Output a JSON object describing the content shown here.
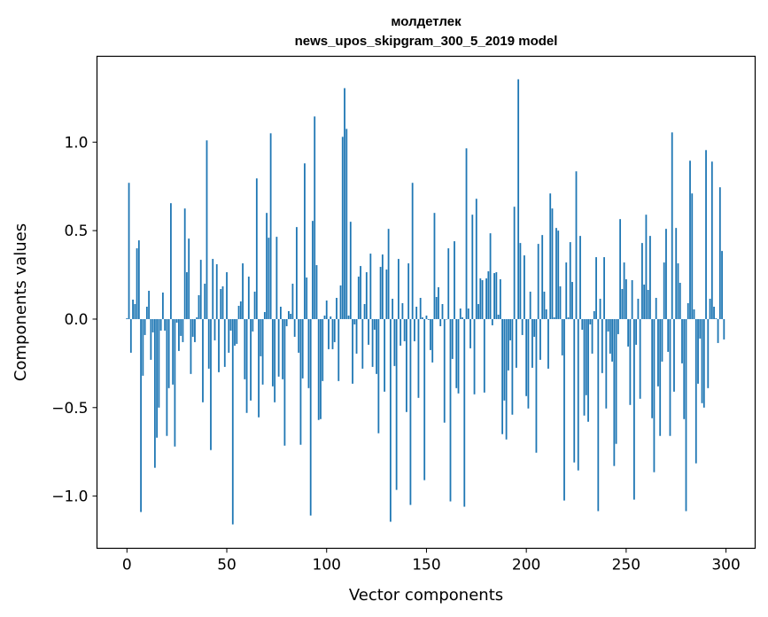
{
  "chart_data": {
    "type": "bar",
    "title_line1": "молдетлек",
    "title_line2": "news_upos_skipgram_300_5_2019 model",
    "xlabel": "Vector components",
    "ylabel": "Components values",
    "xlim": [
      -15,
      314.6
    ],
    "ylim": [
      -1.295,
      1.485
    ],
    "xticks": [
      0,
      50,
      100,
      150,
      200,
      250,
      300
    ],
    "xtick_labels": [
      "0",
      "50",
      "100",
      "150",
      "200",
      "250",
      "300"
    ],
    "yticks": [
      -1.0,
      -0.5,
      0.0,
      0.5,
      1.0
    ],
    "ytick_labels": [
      "−1.0",
      "−0.5",
      "0.0",
      "0.5",
      "1.0"
    ],
    "grid": false,
    "bar_color": "#1f77b4",
    "values": [
      0.005,
      0.77,
      -0.19,
      0.11,
      0.085,
      0.4,
      0.445,
      -1.09,
      -0.32,
      -0.09,
      0.07,
      0.16,
      -0.23,
      -0.075,
      -0.84,
      -0.67,
      -0.5,
      -0.065,
      0.15,
      -0.065,
      -0.66,
      -0.39,
      0.655,
      -0.37,
      -0.72,
      -0.02,
      -0.18,
      -0.095,
      -0.13,
      0.625,
      0.265,
      0.455,
      -0.31,
      -0.1,
      -0.13,
      0.01,
      0.135,
      0.335,
      -0.47,
      0.2,
      1.01,
      -0.28,
      -0.74,
      0.34,
      -0.12,
      0.31,
      -0.3,
      0.17,
      0.185,
      -0.27,
      0.265,
      -0.19,
      -0.065,
      -1.16,
      -0.15,
      -0.14,
      0.075,
      0.1,
      0.315,
      -0.34,
      -0.53,
      0.24,
      -0.46,
      -0.07,
      0.155,
      0.795,
      -0.555,
      -0.21,
      -0.37,
      0.04,
      0.6,
      0.46,
      1.05,
      -0.38,
      -0.47,
      0.465,
      -0.325,
      0.07,
      -0.34,
      -0.715,
      -0.04,
      0.045,
      0.03,
      0.2,
      -0.1,
      0.52,
      -0.19,
      -0.71,
      -0.335,
      0.88,
      0.235,
      -0.39,
      -1.11,
      0.555,
      1.145,
      0.305,
      -0.57,
      -0.565,
      -0.35,
      0.02,
      0.105,
      -0.17,
      0.015,
      -0.17,
      -0.13,
      0.12,
      -0.35,
      0.19,
      1.03,
      1.305,
      1.075,
      0.02,
      0.55,
      -0.365,
      -0.03,
      -0.195,
      0.24,
      0.3,
      -0.28,
      0.085,
      0.265,
      -0.145,
      0.37,
      -0.27,
      -0.06,
      -0.31,
      -0.645,
      0.295,
      0.365,
      -0.41,
      0.28,
      0.51,
      -1.145,
      0.115,
      -0.265,
      -0.965,
      0.34,
      -0.15,
      0.09,
      -0.125,
      -0.525,
      0.315,
      -1.05,
      0.77,
      -0.125,
      0.07,
      -0.445,
      0.12,
      0.01,
      -0.91,
      0.02,
      -0.005,
      -0.175,
      -0.245,
      0.6,
      0.125,
      0.18,
      -0.04,
      0.085,
      -0.585,
      0.0,
      0.4,
      -1.03,
      -0.225,
      0.44,
      -0.39,
      -0.42,
      0.06,
      0.01,
      -1.06,
      0.965,
      0.06,
      -0.165,
      0.59,
      -0.425,
      0.68,
      0.085,
      0.23,
      0.22,
      -0.415,
      0.23,
      0.27,
      0.485,
      -0.035,
      0.26,
      0.265,
      0.025,
      0.225,
      -0.65,
      -0.46,
      -0.68,
      -0.29,
      -0.12,
      -0.54,
      0.635,
      -0.275,
      1.355,
      0.43,
      -0.09,
      0.36,
      -0.435,
      -0.505,
      0.155,
      -0.275,
      -0.1,
      -0.755,
      0.425,
      -0.23,
      0.475,
      0.155,
      0.055,
      -0.28,
      0.71,
      0.625,
      0.01,
      0.515,
      0.5,
      0.185,
      -0.205,
      -1.025,
      0.32,
      0.01,
      0.435,
      0.21,
      -0.81,
      0.835,
      -0.855,
      0.47,
      -0.06,
      -0.545,
      -0.43,
      -0.58,
      -0.03,
      -0.195,
      0.045,
      0.35,
      -1.085,
      0.115,
      -0.305,
      0.35,
      -0.505,
      -0.07,
      -0.195,
      -0.24,
      -0.83,
      -0.705,
      -0.085,
      0.565,
      0.17,
      0.32,
      0.225,
      -0.155,
      -0.485,
      0.22,
      -1.02,
      -0.145,
      0.115,
      -0.45,
      0.43,
      0.195,
      0.59,
      0.165,
      0.47,
      -0.56,
      -0.865,
      0.12,
      -0.38,
      -0.66,
      -0.24,
      0.32,
      0.51,
      -0.185,
      -0.66,
      1.055,
      -0.41,
      0.515,
      0.315,
      0.205,
      -0.25,
      -0.565,
      -1.085,
      0.09,
      0.895,
      0.71,
      0.055,
      -0.815,
      -0.365,
      -0.11,
      -0.475,
      -0.5,
      0.955,
      -0.39,
      0.115,
      0.89,
      0.07,
      0.005,
      -0.135,
      0.745,
      0.385,
      -0.115
    ]
  }
}
